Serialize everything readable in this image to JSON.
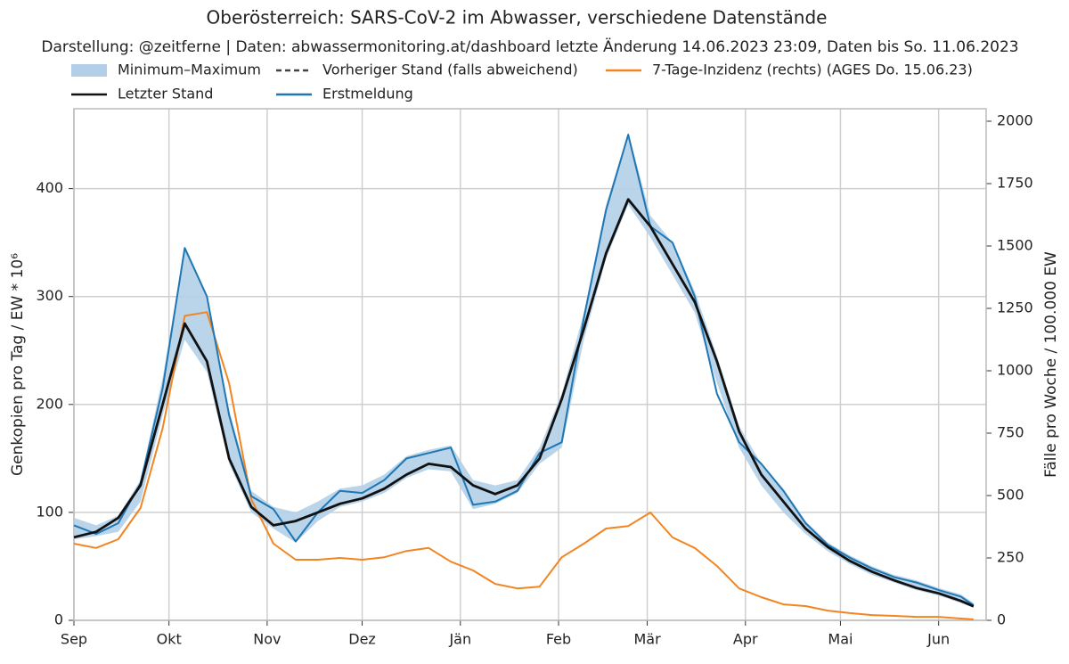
{
  "chart_data": {
    "type": "line",
    "title": "Oberösterreich: SARS-CoV-2 im Abwasser, verschiedene Datenstände",
    "subtitle": "Darstellung: @zeitferne | Daten: abwassermonitoring.at/dashboard letzte Änderung 14.06.2023 23:09, Daten bis So. 11.06.2023",
    "ylabel": "Genkopien pro Tag / EW * 10⁶",
    "y2label": "Fälle pro Woche / 100.000 EW",
    "x": [
      0,
      7,
      14,
      21,
      28,
      35,
      42,
      49,
      56,
      63,
      70,
      77,
      84,
      91,
      98,
      105,
      112,
      119,
      126,
      133,
      140,
      147,
      154,
      161,
      168,
      175,
      182,
      189,
      196,
      203,
      210,
      217,
      224,
      231,
      238,
      245,
      252,
      259,
      266,
      273,
      280,
      284
    ],
    "xlim": [
      0,
      288
    ],
    "xticks": [
      {
        "value": 0,
        "label": "Sep"
      },
      {
        "value": 30,
        "label": "Okt"
      },
      {
        "value": 61,
        "label": "Nov"
      },
      {
        "value": 91,
        "label": "Dez"
      },
      {
        "value": 122,
        "label": "Jän"
      },
      {
        "value": 153,
        "label": "Feb"
      },
      {
        "value": 181,
        "label": "Mär"
      },
      {
        "value": 212,
        "label": "Apr"
      },
      {
        "value": 242,
        "label": "Mai"
      },
      {
        "value": 273,
        "label": "Jun"
      }
    ],
    "ylim": [
      0,
      474
    ],
    "yticks": [
      0,
      100,
      200,
      300,
      400
    ],
    "y2lim": [
      0,
      2050
    ],
    "y2ticks": [
      0,
      250,
      500,
      750,
      1000,
      1250,
      1500,
      1750,
      2000
    ],
    "grid": true,
    "series": [
      {
        "name": "Minimum–Maximum",
        "type": "band",
        "color": "#b3cfe8",
        "lower": [
          75,
          78,
          82,
          110,
          190,
          260,
          230,
          145,
          100,
          85,
          72,
          92,
          105,
          110,
          118,
          132,
          140,
          138,
          103,
          108,
          118,
          145,
          160,
          260,
          335,
          385,
          355,
          320,
          285,
          220,
          160,
          125,
          100,
          80,
          64,
          52,
          42,
          35,
          28,
          23,
          16,
          12
        ],
        "upper": [
          95,
          88,
          97,
          130,
          225,
          345,
          300,
          195,
          120,
          105,
          100,
          110,
          122,
          125,
          135,
          152,
          158,
          162,
          130,
          125,
          130,
          160,
          210,
          285,
          385,
          452,
          375,
          350,
          305,
          245,
          180,
          145,
          122,
          92,
          72,
          60,
          50,
          42,
          37,
          30,
          24,
          16
        ]
      },
      {
        "name": "Letzter Stand",
        "color": "#111111",
        "values": [
          77,
          82,
          95,
          125,
          200,
          275,
          240,
          150,
          105,
          88,
          92,
          100,
          108,
          113,
          122,
          135,
          145,
          142,
          125,
          117,
          125,
          150,
          205,
          270,
          340,
          390,
          365,
          330,
          295,
          240,
          175,
          135,
          110,
          85,
          68,
          55,
          45,
          37,
          30,
          25,
          18,
          13
        ]
      },
      {
        "name": "Vorheriger Stand (falls abweichend)",
        "color": "#444444",
        "dash": true,
        "values": [
          null,
          null,
          null,
          null,
          null,
          null,
          null,
          null,
          null,
          null,
          null,
          null,
          null,
          null,
          null,
          null,
          null,
          null,
          null,
          null,
          null,
          null,
          null,
          null,
          null,
          null,
          null,
          null,
          null,
          null,
          null,
          null,
          null,
          null,
          null,
          null,
          null,
          null,
          null,
          null,
          null,
          null
        ]
      },
      {
        "name": "Erstmeldung",
        "color": "#1f77b4",
        "values": [
          88,
          80,
          90,
          127,
          215,
          345,
          300,
          190,
          115,
          103,
          73,
          100,
          120,
          118,
          130,
          150,
          155,
          160,
          107,
          110,
          120,
          155,
          165,
          280,
          380,
          450,
          365,
          350,
          300,
          210,
          165,
          145,
          120,
          90,
          70,
          58,
          48,
          40,
          35,
          28,
          22,
          14
        ]
      },
      {
        "name": "7-Tage-Inzidenz (rechts) (AGES Do. 15.06.23)",
        "color": "#f28522",
        "axis": "y2",
        "values": [
          307,
          290,
          325,
          450,
          770,
          1220,
          1235,
          950,
          485,
          307,
          243,
          243,
          250,
          243,
          253,
          278,
          290,
          235,
          200,
          146,
          128,
          135,
          253,
          307,
          368,
          378,
          432,
          332,
          290,
          218,
          128,
          93,
          64,
          57,
          39,
          29,
          21,
          18,
          14,
          14,
          7,
          4
        ]
      }
    ]
  }
}
